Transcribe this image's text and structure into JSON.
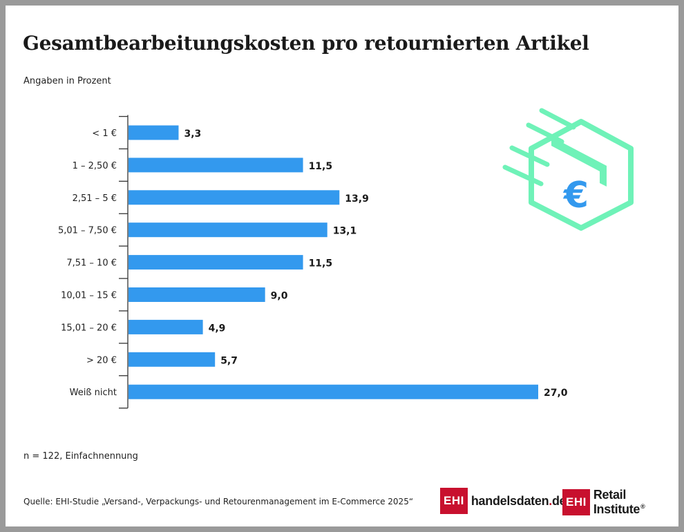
{
  "chart_data": {
    "type": "bar",
    "orientation": "horizontal",
    "title": "Gesamtbearbeitungskosten pro retournierten Artikel",
    "subtitle": "Angaben in Prozent",
    "categories": [
      "< 1 €",
      "1 – 2,50 €",
      "2,51 – 5 €",
      "5,01 – 7,50 €",
      "7,51 – 10 €",
      "10,01 – 15 €",
      "15,01 – 20 €",
      "> 20 €",
      "Weiß nicht"
    ],
    "values": [
      3.3,
      11.5,
      13.9,
      13.1,
      11.5,
      9.0,
      4.9,
      5.7,
      27.0
    ],
    "value_labels": [
      "3,3",
      "11,5",
      "13,9",
      "13,1",
      "11,5",
      "9,0",
      "4,9",
      "5,7",
      "27,0"
    ],
    "xlim": [
      0,
      27
    ],
    "bar_color": "#3399ee",
    "grid": false,
    "legend": "none"
  },
  "note": "n = 122, Einfachnennung",
  "source": "Quelle: EHI-Studie „Versand-, Verpackungs- und Retourenmanagement im E-Commerce 2025“",
  "logos": {
    "first_box": "EHI",
    "first_text": "handelsdaten",
    "first_dot": ".",
    "first_suffix": "de",
    "second_box": "EHI",
    "second_text": "Retail Institute",
    "second_reg": "®"
  },
  "illustration": {
    "icon": "euro-package-icon",
    "symbol": "€",
    "color": "#6ff2b8",
    "symbol_color": "#3399ee"
  }
}
